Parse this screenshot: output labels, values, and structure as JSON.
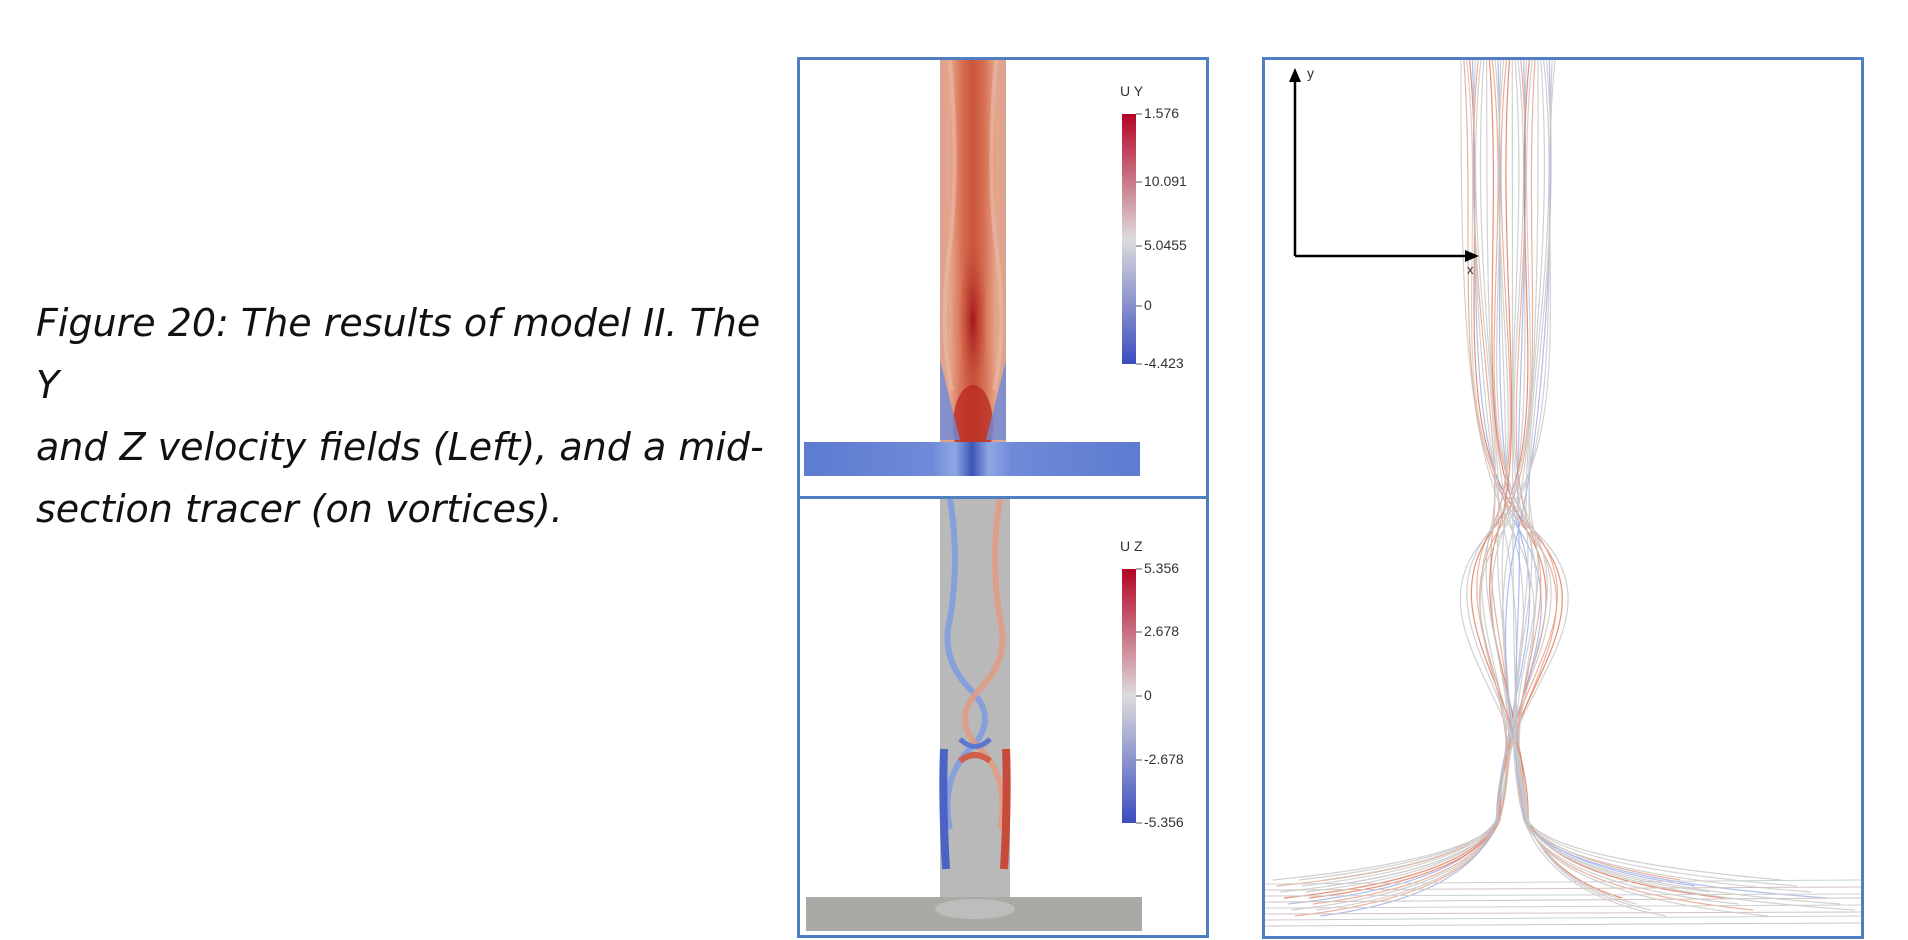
{
  "caption": {
    "line1": "Figure 20: The results of model II. The Y",
    "line2": "and Z velocity fields (Left), and a mid-",
    "line3": "section tracer (on vortices)."
  },
  "uy_legend": {
    "title": "U Y",
    "ticks": [
      "1.576",
      "10.091",
      "5.0455",
      "0",
      "-4.423"
    ],
    "colors": {
      "high": "#b40426",
      "mid": "#dddcdc",
      "low": "#3b4cc0"
    }
  },
  "uz_legend": {
    "title": "U Z",
    "ticks": [
      "5.356",
      "2.678",
      "0",
      "-2.678",
      "-5.356"
    ],
    "colors": {
      "high": "#b40426",
      "mid": "#dddcdc",
      "low": "#3b4cc0"
    }
  },
  "tracer_axes": {
    "y_label": "y",
    "x_label": "x"
  }
}
